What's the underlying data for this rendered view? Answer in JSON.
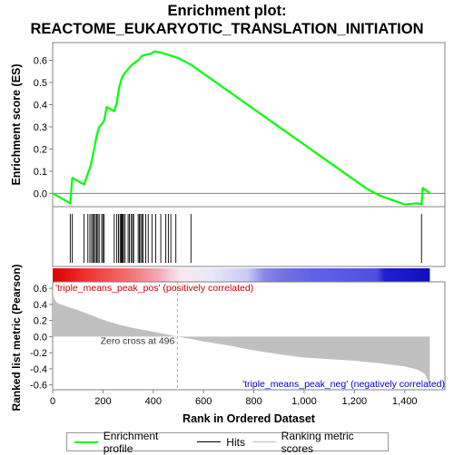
{
  "title_line1": "Enrichment plot:",
  "title_line2": "REACTOME_EUKARYOTIC_TRANSLATION_INITIATION",
  "colors": {
    "enrichment": "#00ff00",
    "hits": "#000000",
    "ranking": "#c0c0c0",
    "axis": "#808080"
  },
  "chart_data": [
    {
      "type": "line",
      "panel": "enrichment",
      "ylabel": "Enrichment score (ES)",
      "ylim": [
        -0.06,
        0.68
      ],
      "yticks": [
        0.0,
        0.1,
        0.2,
        0.3,
        0.4,
        0.5,
        0.6
      ],
      "ytick_labels": [
        "0.0",
        "0.1",
        "0.2",
        "0.3",
        "0.4",
        "0.5",
        "0.6"
      ],
      "xlim": [
        0,
        1560
      ],
      "series": [
        {
          "name": "Enrichment profile",
          "x": [
            0,
            70,
            78,
            125,
            140,
            150,
            165,
            175,
            185,
            195,
            205,
            215,
            245,
            255,
            265,
            275,
            285,
            300,
            315,
            340,
            355,
            370,
            390,
            405,
            430,
            460,
            500,
            550,
            600,
            650,
            700,
            750,
            800,
            850,
            900,
            950,
            1000,
            1050,
            1100,
            1150,
            1200,
            1250,
            1300,
            1350,
            1400,
            1450,
            1467,
            1472,
            1500
          ],
          "y": [
            0.0,
            -0.045,
            0.07,
            0.04,
            0.09,
            0.12,
            0.2,
            0.26,
            0.3,
            0.31,
            0.33,
            0.39,
            0.37,
            0.41,
            0.48,
            0.52,
            0.54,
            0.56,
            0.58,
            0.6,
            0.62,
            0.625,
            0.63,
            0.64,
            0.635,
            0.625,
            0.61,
            0.58,
            0.54,
            0.5,
            0.46,
            0.42,
            0.38,
            0.34,
            0.3,
            0.26,
            0.22,
            0.18,
            0.14,
            0.1,
            0.06,
            0.02,
            -0.01,
            -0.03,
            -0.05,
            -0.045,
            -0.05,
            0.025,
            0.0
          ]
        }
      ]
    },
    {
      "type": "scatter",
      "panel": "hits",
      "series": [
        {
          "name": "Hits",
          "x": [
            70,
            78,
            125,
            140,
            148,
            155,
            160,
            165,
            170,
            175,
            180,
            185,
            195,
            200,
            205,
            245,
            255,
            262,
            268,
            272,
            275,
            278,
            282,
            288,
            300,
            305,
            312,
            318,
            322,
            340,
            345,
            350,
            355,
            360,
            370,
            380,
            395,
            410,
            430,
            450,
            460,
            470,
            490,
            550,
            1467
          ]
        }
      ]
    },
    {
      "type": "area",
      "panel": "ranking",
      "ylabel": "Ranked list metric (Pearson)",
      "xlabel": "Rank in Ordered Dataset",
      "ylim": [
        -0.66,
        0.68
      ],
      "yticks": [
        -0.6,
        -0.4,
        -0.2,
        0.0,
        0.2,
        0.4,
        0.6
      ],
      "ytick_labels": [
        "-0.6",
        "-0.4",
        "-0.2",
        "0.0",
        "0.2",
        "0.4",
        "0.6"
      ],
      "xlim": [
        0,
        1560
      ],
      "xticks": [
        0,
        200,
        400,
        600,
        800,
        1000,
        1200,
        1400
      ],
      "xtick_labels": [
        "0",
        "200",
        "400",
        "600",
        "800",
        "1,000",
        "1,200",
        "1,400"
      ],
      "series": [
        {
          "name": "Ranking metric scores",
          "x": [
            0,
            5,
            15,
            30,
            60,
            100,
            150,
            200,
            250,
            300,
            350,
            400,
            450,
            496,
            550,
            600,
            700,
            800,
            900,
            1000,
            1100,
            1200,
            1300,
            1400,
            1450,
            1480,
            1495,
            1500
          ],
          "y": [
            0.6,
            0.48,
            0.43,
            0.4,
            0.37,
            0.33,
            0.27,
            0.21,
            0.16,
            0.12,
            0.09,
            0.06,
            0.03,
            0.0,
            -0.03,
            -0.06,
            -0.11,
            -0.17,
            -0.22,
            -0.26,
            -0.28,
            -0.3,
            -0.33,
            -0.37,
            -0.41,
            -0.46,
            -0.56,
            -0.62
          ]
        }
      ],
      "annotations": {
        "pos_label": "'triple_means_peak_pos' (positively correlated)",
        "neg_label": "'triple_means_peak_neg' (negatively correlated)",
        "zero_cross": "Zero cross at 496"
      }
    }
  ],
  "legend": {
    "enrichment": "Enrichment profile",
    "hits": "Hits",
    "ranking": "Ranking metric scores"
  }
}
